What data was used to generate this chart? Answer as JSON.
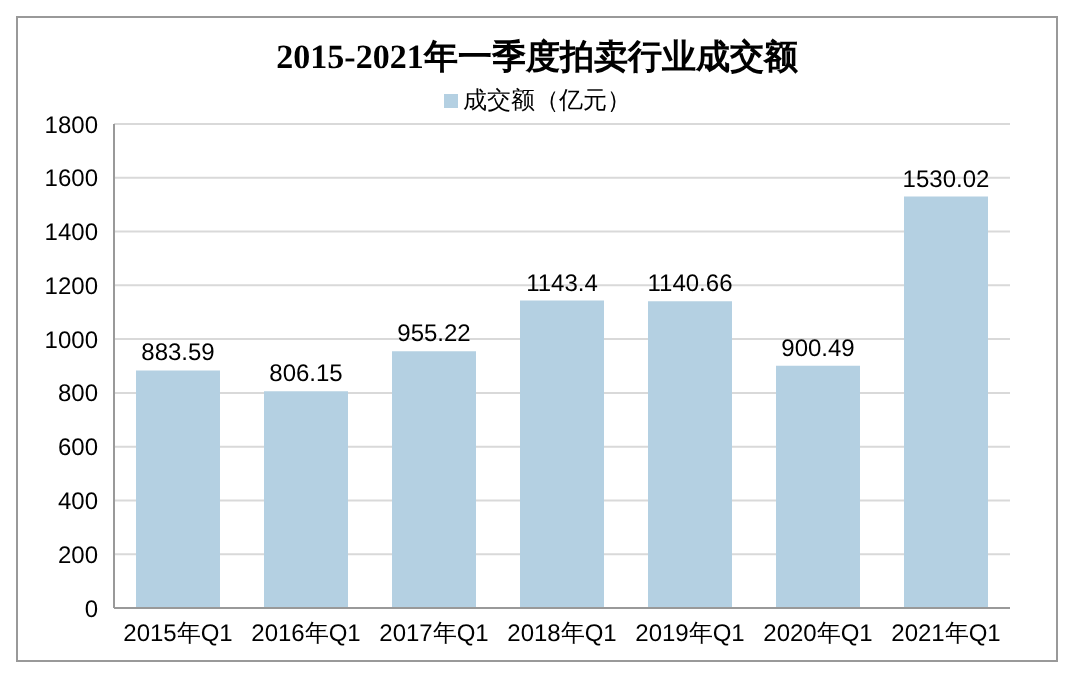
{
  "chart_data": {
    "type": "bar",
    "title": "2015-2021年一季度拍卖行业成交额",
    "categories": [
      "2015年Q1",
      "2016年Q1",
      "2017年Q1",
      "2018年Q1",
      "2019年Q1",
      "2020年Q1",
      "2021年Q1"
    ],
    "series": [
      {
        "name": "成交额（亿元）",
        "color": "#b4d0e2",
        "values": [
          883.59,
          806.15,
          955.22,
          1143.4,
          1140.66,
          900.49,
          1530.02
        ]
      }
    ],
    "ylim": [
      0,
      1800
    ],
    "yticks": [
      0,
      200,
      400,
      600,
      800,
      1000,
      1200,
      1400,
      1600,
      1800
    ],
    "grid": "y",
    "legend": "top",
    "data_labels": true
  }
}
